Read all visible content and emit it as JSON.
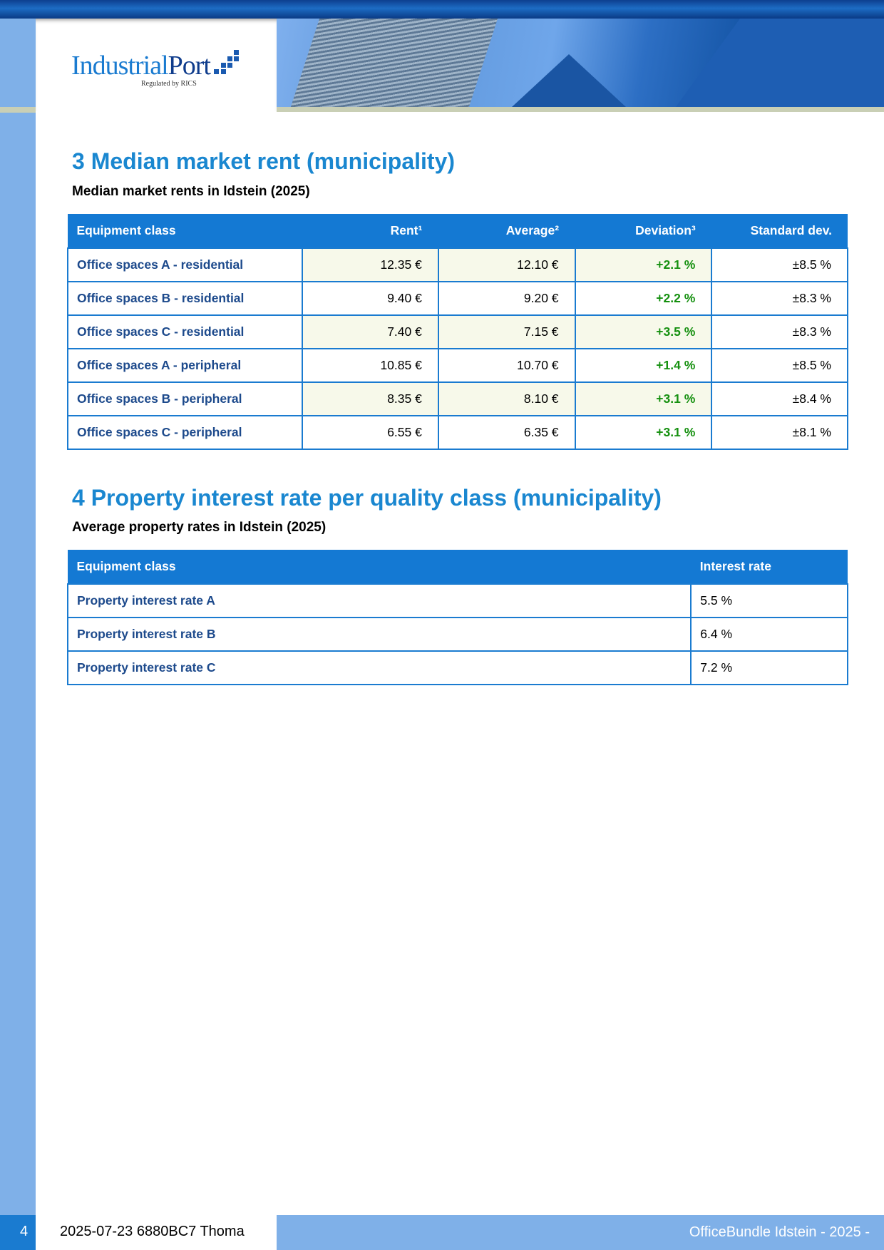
{
  "header": {
    "logo_name": "IndustrialPort",
    "logo_tagline": "Regulated by RICS"
  },
  "section3": {
    "title": "3 Median market rent (municipality)",
    "subtitle": "Median market rents in Idstein (2025)",
    "columns": [
      "Equipment class",
      "Rent¹",
      "Average²",
      "Deviation³",
      "Standard dev."
    ],
    "rows": [
      [
        "Office spaces A - residential",
        "12.35 €",
        "12.10 €",
        "+2.1 %",
        "±8.5 %"
      ],
      [
        "Office spaces B - residential",
        "9.40 €",
        "9.20 €",
        "+2.2 %",
        "±8.3 %"
      ],
      [
        "Office spaces C - residential",
        "7.40 €",
        "7.15 €",
        "+3.5 %",
        "±8.3 %"
      ],
      [
        "Office spaces A - peripheral",
        "10.85 €",
        "10.70 €",
        "+1.4 %",
        "±8.5 %"
      ],
      [
        "Office spaces B - peripheral",
        "8.35 €",
        "8.10 €",
        "+3.1 %",
        "±8.4 %"
      ],
      [
        "Office spaces C - peripheral",
        "6.55 €",
        "6.35 €",
        "+3.1 %",
        "±8.1 %"
      ]
    ]
  },
  "section4": {
    "title": "4 Property interest rate per quality class (municipality)",
    "subtitle": "Average property rates in Idstein (2025)",
    "columns": [
      "Equipment class",
      "Interest rate"
    ],
    "rows": [
      [
        "Property interest rate A",
        "5.5 %"
      ],
      [
        "Property interest rate B",
        "6.4 %"
      ],
      [
        "Property interest rate C",
        "7.2 %"
      ]
    ]
  },
  "footer": {
    "page": "4",
    "left": "2025-07-23 6880BC7 Thoma",
    "right": "OfficeBundle Idstein - 2025 -"
  }
}
